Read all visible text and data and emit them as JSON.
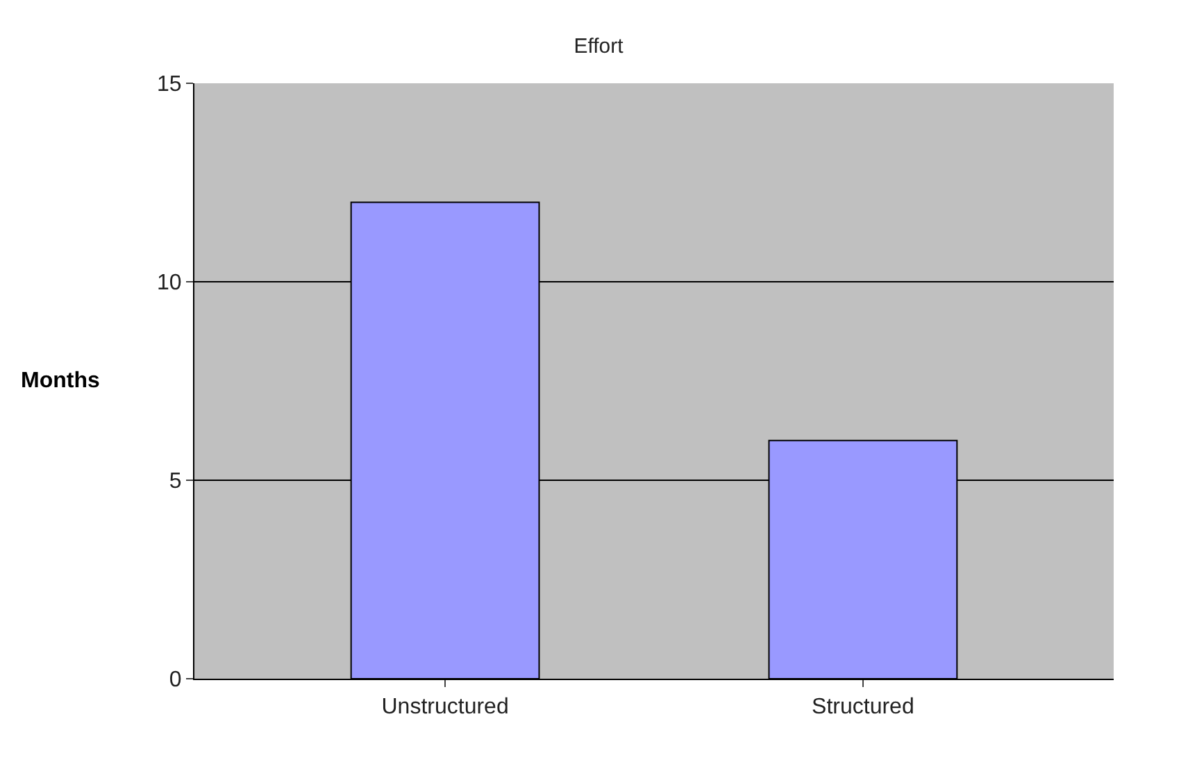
{
  "chart_data": {
    "type": "bar",
    "title": "Effort",
    "ylabel": "Months",
    "categories": [
      "Unstructured",
      "Structured"
    ],
    "series": [
      {
        "color": "#9999ff",
        "values": [
          12,
          6
        ]
      }
    ],
    "ylim": [
      0,
      15
    ],
    "yticks": [
      0,
      5,
      10,
      15
    ],
    "grid": "y"
  }
}
